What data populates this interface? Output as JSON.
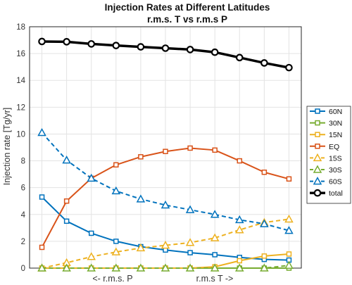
{
  "chart_data": {
    "type": "line",
    "title": "Injection Rates at Different Latitudes",
    "subtitle": "r.m.s. T vs r.m.s P",
    "xlabel_left": "<- r.m.s. P",
    "xlabel_right": "r.m.s T ->",
    "ylabel": "Injection rate [Tg/yr]",
    "x": [
      1,
      2,
      3,
      4,
      5,
      6,
      7,
      8,
      9,
      10,
      11
    ],
    "xlim": [
      0.5,
      11.5
    ],
    "ylim": [
      0,
      18
    ],
    "yticks": [
      "0",
      "2",
      "4",
      "6",
      "8",
      "10",
      "12",
      "14",
      "16",
      "18"
    ],
    "grid": true,
    "legend_position": "right",
    "series": [
      {
        "name": "60N",
        "color": "#0072BD",
        "style": "solid",
        "marker": "square",
        "width": 2,
        "values": [
          5.3,
          3.5,
          2.6,
          2.0,
          1.6,
          1.35,
          1.15,
          1.0,
          0.8,
          0.65,
          0.6
        ]
      },
      {
        "name": "30N",
        "color": "#77AC30",
        "style": "solid",
        "marker": "square",
        "width": 2,
        "values": [
          0.0,
          0.0,
          0.0,
          0.0,
          0.0,
          0.0,
          0.0,
          0.0,
          0.0,
          0.0,
          0.0
        ]
      },
      {
        "name": "15N",
        "color": "#EDB120",
        "style": "solid",
        "marker": "square",
        "width": 2,
        "values": [
          0.0,
          0.0,
          0.0,
          0.0,
          0.0,
          0.0,
          0.0,
          0.1,
          0.55,
          0.9,
          1.05
        ]
      },
      {
        "name": "EQ",
        "color": "#D95319",
        "style": "solid",
        "marker": "square",
        "width": 2,
        "values": [
          1.55,
          5.0,
          6.7,
          7.7,
          8.3,
          8.7,
          8.95,
          8.8,
          8.0,
          7.15,
          6.65
        ]
      },
      {
        "name": "15S",
        "color": "#EDB120",
        "style": "dashed",
        "marker": "triangle",
        "width": 2,
        "values": [
          0.0,
          0.4,
          0.85,
          1.2,
          1.5,
          1.7,
          1.9,
          2.25,
          2.85,
          3.4,
          3.65
        ]
      },
      {
        "name": "30S",
        "color": "#77AC30",
        "style": "dashed",
        "marker": "triangle",
        "width": 2,
        "values": [
          0.0,
          0.0,
          0.0,
          0.0,
          0.0,
          0.0,
          0.0,
          0.0,
          0.0,
          0.0,
          0.2
        ]
      },
      {
        "name": "60S",
        "color": "#0072BD",
        "style": "dashed",
        "marker": "triangle",
        "width": 2,
        "values": [
          10.1,
          8.05,
          6.7,
          5.75,
          5.15,
          4.7,
          4.35,
          4.0,
          3.6,
          3.3,
          2.8
        ]
      },
      {
        "name": "total",
        "color": "#000000",
        "style": "solid",
        "marker": "circle",
        "width": 3.5,
        "values": [
          16.9,
          16.88,
          16.72,
          16.6,
          16.5,
          16.4,
          16.3,
          16.1,
          15.7,
          15.3,
          14.95
        ]
      }
    ]
  }
}
